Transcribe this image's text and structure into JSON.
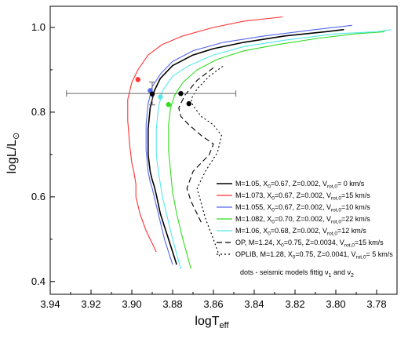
{
  "chart_data": {
    "type": "line",
    "xlabel": "logT",
    "xlabel_sub": "eff",
    "ylabel": "logL/L",
    "ylabel_sun": "⊙",
    "xlim": [
      3.94,
      3.77
    ],
    "ylim": [
      0.37,
      1.05
    ],
    "x_ticks": [
      "3.94",
      "3.92",
      "3.90",
      "3.88",
      "3.86",
      "3.84",
      "3.82",
      "3.80",
      "3.78"
    ],
    "y_ticks": [
      "0.4",
      "0.6",
      "0.8",
      "1.0"
    ],
    "x_tick_values": [
      3.94,
      3.92,
      3.9,
      3.88,
      3.86,
      3.84,
      3.82,
      3.8,
      3.78
    ],
    "y_tick_values": [
      0.4,
      0.6,
      0.8,
      1.0
    ],
    "legend_position": "bottom-right",
    "series": [
      {
        "color": "#000000",
        "dash": "solid",
        "legend": {
          "a": "M=1.05, X",
          "s1": "0",
          "b": "=0.67, Z=0.002, V",
          "s2": "rot,0",
          "c": "= 0 km/s"
        },
        "x": [
          3.878,
          3.882,
          3.886,
          3.888,
          3.889,
          3.89,
          3.891,
          3.892,
          3.892,
          3.891,
          3.889,
          3.886,
          3.88,
          3.87,
          3.86,
          3.845,
          3.825,
          3.805,
          3.796
        ],
        "y": [
          0.44,
          0.5,
          0.56,
          0.605,
          0.625,
          0.64,
          0.66,
          0.7,
          0.76,
          0.81,
          0.85,
          0.88,
          0.91,
          0.935,
          0.95,
          0.965,
          0.98,
          0.99,
          0.995
        ]
      },
      {
        "color": "#ff3333",
        "dash": "solid",
        "legend": {
          "a": "M=1.073, X",
          "s1": "0",
          "b": "=0.67, Z=0.002, V",
          "s2": "rot,0",
          "c": "=15 km/s"
        },
        "x": [
          3.888,
          3.893,
          3.896,
          3.898,
          3.898,
          3.899,
          3.9,
          3.901,
          3.902,
          3.902,
          3.9,
          3.897,
          3.892,
          3.885,
          3.875,
          3.86,
          3.845,
          3.826
        ],
        "y": [
          0.47,
          0.52,
          0.56,
          0.6,
          0.63,
          0.66,
          0.68,
          0.72,
          0.78,
          0.83,
          0.87,
          0.9,
          0.935,
          0.96,
          0.98,
          1.0,
          1.015,
          1.025
        ]
      },
      {
        "color": "#5566ee",
        "dash": "solid",
        "legend": {
          "a": "M=1.055, X",
          "s1": "0",
          "b": "=0.67, Z=0.002, V",
          "s2": "rot,0",
          "c": "=10 km/s"
        },
        "x": [
          3.88,
          3.884,
          3.887,
          3.889,
          3.89,
          3.891,
          3.892,
          3.893,
          3.893,
          3.892,
          3.89,
          3.886,
          3.88,
          3.87,
          3.855,
          3.835,
          3.81,
          3.792
        ],
        "y": [
          0.44,
          0.5,
          0.56,
          0.6,
          0.62,
          0.635,
          0.66,
          0.71,
          0.77,
          0.82,
          0.86,
          0.89,
          0.92,
          0.945,
          0.965,
          0.98,
          0.995,
          1.005
        ]
      },
      {
        "color": "#33dd22",
        "dash": "solid",
        "legend": {
          "a": "M=1.082, X",
          "s1": "0",
          "b": "=0.70, Z=0.002, V",
          "s2": "rot,0",
          "c": "=22 km/s"
        },
        "x": [
          3.871,
          3.875,
          3.878,
          3.88,
          3.881,
          3.882,
          3.882,
          3.881,
          3.879,
          3.875,
          3.868,
          3.858,
          3.845,
          3.828,
          3.808,
          3.79,
          3.776
        ],
        "y": [
          0.43,
          0.5,
          0.56,
          0.61,
          0.66,
          0.71,
          0.77,
          0.81,
          0.84,
          0.87,
          0.9,
          0.925,
          0.945,
          0.96,
          0.975,
          0.985,
          0.99
        ]
      },
      {
        "color": "#55e8e8",
        "dash": "solid",
        "legend": {
          "a": "M=1.06, X",
          "s1": "0",
          "b": "=0.68, Z=0.002, V",
          "s2": "rot,0",
          "c": "=12 km/s"
        },
        "x": [
          3.876,
          3.88,
          3.883,
          3.885,
          3.886,
          3.887,
          3.888,
          3.888,
          3.887,
          3.885,
          3.88,
          3.872,
          3.86,
          3.845,
          3.825,
          3.8,
          3.78,
          3.773
        ],
        "y": [
          0.43,
          0.5,
          0.56,
          0.6,
          0.63,
          0.66,
          0.7,
          0.76,
          0.81,
          0.85,
          0.885,
          0.91,
          0.935,
          0.955,
          0.97,
          0.985,
          0.99,
          0.995
        ]
      },
      {
        "color": "#000000",
        "dash": "dash",
        "legend": {
          "a": "OP, M=1.24, X",
          "s1": "0",
          "b": "=0.75, Z=0.0034,  V",
          "s2": "rot,0",
          "c": "=15 km/s"
        },
        "x": [
          3.866,
          3.868,
          3.871,
          3.873,
          3.87,
          3.862,
          3.86,
          3.866,
          3.872,
          3.876,
          3.877,
          3.874,
          3.868,
          3.86
        ],
        "y": [
          0.54,
          0.56,
          0.59,
          0.62,
          0.66,
          0.7,
          0.725,
          0.745,
          0.77,
          0.79,
          0.81,
          0.84,
          0.875,
          0.905
        ]
      },
      {
        "color": "#000000",
        "dash": "dot",
        "legend": {
          "a": "OPLIB, M=1.28, X",
          "s1": "0",
          "b": "=0.75, Z=0.0041,  V",
          "s2": "rot,0",
          "c": "= 5 km/s"
        },
        "x": [
          3.857,
          3.86,
          3.864,
          3.868,
          3.864,
          3.858,
          3.856,
          3.86,
          3.866,
          3.87,
          3.871,
          3.868,
          3.862,
          3.855
        ],
        "y": [
          0.46,
          0.5,
          0.55,
          0.62,
          0.66,
          0.705,
          0.745,
          0.77,
          0.79,
          0.815,
          0.83,
          0.855,
          0.885,
          0.91
        ]
      }
    ],
    "dots": [
      {
        "color": "#ff3333",
        "x": 3.897,
        "y": 0.877
      },
      {
        "color": "#5566ee",
        "x": 3.891,
        "y": 0.851
      },
      {
        "color": "#000000",
        "x": 3.89,
        "y": 0.843
      },
      {
        "color": "#55e8e8",
        "x": 3.886,
        "y": 0.836
      },
      {
        "color": "#33dd22",
        "x": 3.882,
        "y": 0.818
      },
      {
        "color": "#000000",
        "x": 3.876,
        "y": 0.844
      },
      {
        "color": "#000000",
        "x": 3.872,
        "y": 0.82
      }
    ],
    "error_bar": {
      "x": 3.89,
      "y": 0.844,
      "x_min": 3.932,
      "x_max": 3.849,
      "y_min": 0.817,
      "y_max": 0.871
    },
    "note": {
      "a": "dots - seismic models fittig ν",
      "s1": "1",
      "b": " and ν",
      "s2": "2"
    }
  }
}
